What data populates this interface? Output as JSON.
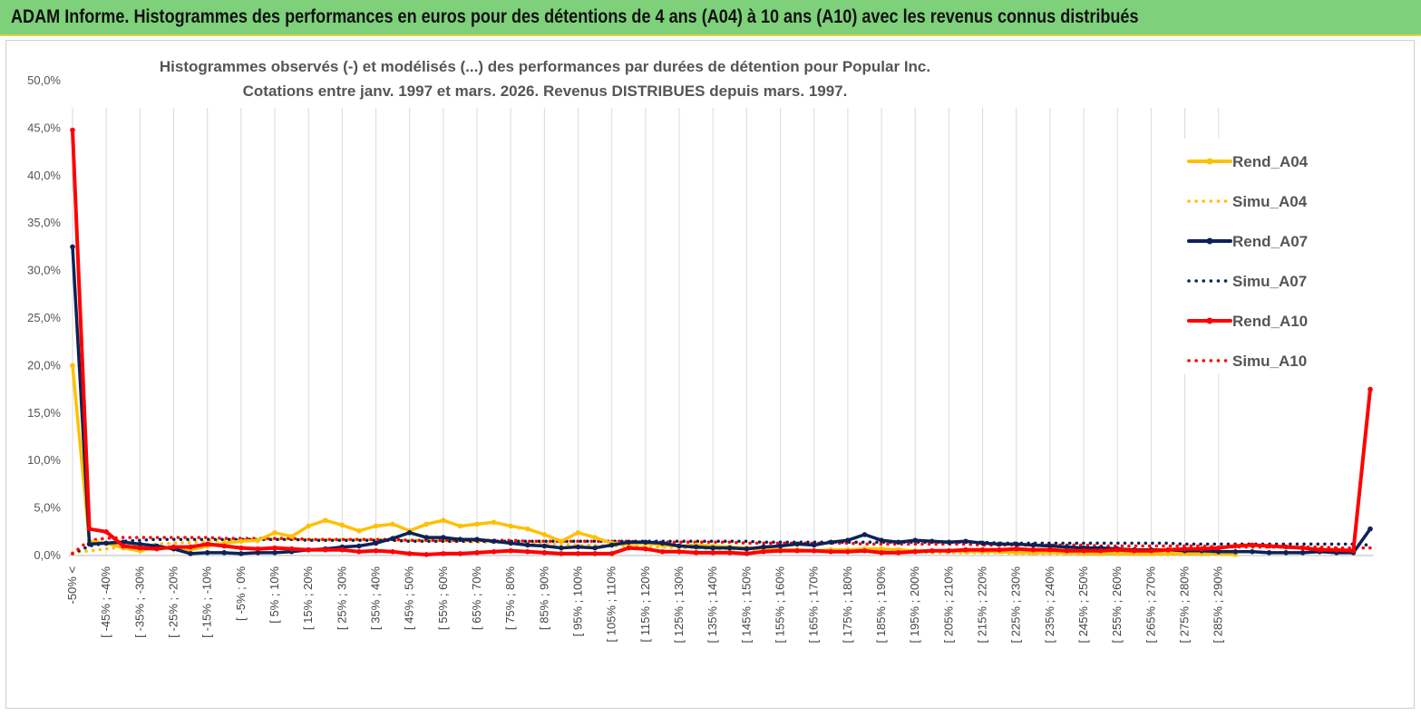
{
  "header": {
    "title": "ADAM Informe. Histogrammes des performances en euros pour des détentions de 4 ans (A04) à 10 ans (A10) avec les revenus connus distribués"
  },
  "chart_data": {
    "type": "line",
    "title_line1": "Histogrammes observés (-) et modélisés (...) des performances par durées de détention pour Popular Inc.",
    "title_line2": "Cotations entre janv. 1997 et mars. 2026. Revenus DISTRIBUES depuis mars. 1997.",
    "ylim": [
      0,
      50
    ],
    "yticks": [
      "0,0%",
      "5,0%",
      "10,0%",
      "15,0%",
      "20,0%",
      "25,0%",
      "30,0%",
      "35,0%",
      "40,0%",
      "45,0%",
      "50,0%"
    ],
    "grid": "vertical",
    "legend_position": "right",
    "x_labels": [
      "-50% <",
      "[ -45% ; -40%",
      "[ -35% ; -30%",
      "[ -25% ; -20%",
      "[ -15% ; -10%",
      "[ -5% ; 0%",
      "[ 5% ; 10%",
      "[ 15% ; 20%",
      "[ 25% ; 30%",
      "[ 35% ; 40%",
      "[ 45% ; 50%",
      "[ 55% ; 60%",
      "[ 65% ; 70%",
      "[ 75% ; 80%",
      "[ 85% ; 90%",
      "[ 95% ; 100%",
      "[ 105% ; 110%",
      "[ 115% ; 120%",
      "[ 125% ; 130%",
      "[ 135% ; 140%",
      "[ 145% ; 150%",
      "[ 155% ; 160%",
      "[ 165% ; 170%",
      "[ 175% ; 180%",
      "[ 185% ; 190%",
      "[ 195% ; 200%",
      "[ 205% ; 210%",
      "[ 215% ; 220%",
      "[ 225% ; 230%",
      "[ 235% ; 240%",
      "[ 245% ; 250%",
      "[ 255% ; 260%",
      "[ 265% ; 270%",
      "[ 275% ; 280%",
      "[ 285% ; 290%"
    ],
    "series": [
      {
        "name": "Rend_A04",
        "style": "solid",
        "color": "#ffc000",
        "values": [
          20.0,
          1.5,
          1.3,
          0.8,
          0.5,
          0.9,
          0.7,
          0.6,
          1.0,
          1.3,
          1.5,
          1.6,
          2.4,
          2.0,
          3.1,
          3.7,
          3.2,
          2.6,
          3.1,
          3.3,
          2.6,
          3.3,
          3.7,
          3.1,
          3.3,
          3.5,
          3.1,
          2.8,
          2.2,
          1.5,
          2.4,
          1.9,
          1.3,
          1.2,
          1.3,
          1.1,
          1.0,
          1.1,
          1.0,
          0.9,
          0.8,
          0.7,
          0.6,
          0.6,
          0.5,
          0.6,
          0.6,
          0.7,
          0.7,
          0.6,
          0.5,
          0.5,
          0.5,
          0.4,
          0.4,
          0.4,
          0.3,
          0.3,
          0.3,
          0.3,
          0.2,
          0.2,
          0.2,
          0.2,
          0.2,
          0.2,
          0.2,
          0.2,
          0.2,
          0.1
        ]
      },
      {
        "name": "Simu_A04",
        "style": "dotted",
        "color": "#ffc000",
        "values": [
          0.3,
          0.5,
          0.7,
          0.9,
          1.1,
          1.2,
          1.3,
          1.4,
          1.5,
          1.6,
          1.6,
          1.7,
          1.7,
          1.7,
          1.7,
          1.7,
          1.7,
          1.7,
          1.7,
          1.6,
          1.6,
          1.6,
          1.5,
          1.5,
          1.4,
          1.4,
          1.3,
          1.3,
          1.2,
          1.2,
          1.1,
          1.1,
          1.0,
          1.0,
          0.9,
          0.9,
          0.8,
          0.8,
          0.7,
          0.7,
          0.7,
          0.6,
          0.6,
          0.6,
          0.5,
          0.5,
          0.5,
          0.4,
          0.4,
          0.4,
          0.4,
          0.3,
          0.3,
          0.3,
          0.3,
          0.3,
          0.2,
          0.2,
          0.2,
          0.2,
          0.2,
          0.2,
          0.2,
          0.1,
          0.1,
          0.1,
          0.1,
          0.1,
          0.1,
          0.1
        ]
      },
      {
        "name": "Rend_A07",
        "style": "solid",
        "color": "#0d2258",
        "values": [
          32.5,
          1.2,
          1.3,
          1.4,
          1.2,
          1.0,
          0.7,
          0.2,
          0.3,
          0.3,
          0.2,
          0.3,
          0.3,
          0.4,
          0.6,
          0.7,
          0.9,
          1.0,
          1.3,
          1.8,
          2.4,
          1.9,
          1.9,
          1.7,
          1.7,
          1.5,
          1.3,
          1.1,
          1.0,
          0.8,
          0.9,
          0.8,
          1.1,
          1.4,
          1.4,
          1.3,
          1.0,
          0.9,
          0.8,
          0.8,
          0.7,
          0.9,
          1.0,
          1.2,
          1.1,
          1.4,
          1.6,
          2.2,
          1.6,
          1.4,
          1.6,
          1.5,
          1.4,
          1.5,
          1.3,
          1.2,
          1.2,
          1.1,
          1.0,
          0.9,
          0.8,
          0.8,
          0.7,
          0.6,
          0.6,
          0.6,
          0.5,
          0.5,
          0.4,
          0.4,
          0.4,
          0.3,
          0.3,
          0.3,
          0.4,
          0.3,
          0.3,
          2.8
        ]
      },
      {
        "name": "Simu_A07",
        "style": "dotted",
        "color": "#0d2258",
        "values": [
          0.2,
          1.0,
          1.3,
          1.5,
          1.6,
          1.7,
          1.7,
          1.7,
          1.7,
          1.7,
          1.7,
          1.7,
          1.7,
          1.7,
          1.6,
          1.6,
          1.6,
          1.6,
          1.6,
          1.6,
          1.5,
          1.5,
          1.5,
          1.5,
          1.5,
          1.5,
          1.5,
          1.5,
          1.5,
          1.5,
          1.5,
          1.5,
          1.5,
          1.5,
          1.5,
          1.5,
          1.5,
          1.5,
          1.5,
          1.5,
          1.5,
          1.4,
          1.4,
          1.4,
          1.4,
          1.4,
          1.4,
          1.4,
          1.4,
          1.4,
          1.4,
          1.4,
          1.4,
          1.4,
          1.4,
          1.3,
          1.3,
          1.3,
          1.3,
          1.3,
          1.3,
          1.3,
          1.3,
          1.3,
          1.3,
          1.3,
          1.2,
          1.2,
          1.2,
          1.2,
          1.2,
          1.2,
          1.2,
          1.2,
          1.2,
          1.2,
          1.2,
          1.1
        ]
      },
      {
        "name": "Rend_A10",
        "style": "solid",
        "color": "#ff0000",
        "values": [
          44.8,
          2.8,
          2.5,
          1.0,
          0.8,
          0.7,
          0.9,
          0.9,
          1.2,
          1.0,
          0.8,
          0.7,
          0.8,
          0.7,
          0.6,
          0.6,
          0.6,
          0.4,
          0.5,
          0.4,
          0.2,
          0.1,
          0.2,
          0.2,
          0.3,
          0.4,
          0.5,
          0.4,
          0.3,
          0.2,
          0.2,
          0.2,
          0.2,
          0.8,
          0.7,
          0.4,
          0.4,
          0.3,
          0.3,
          0.3,
          0.2,
          0.4,
          0.5,
          0.5,
          0.5,
          0.4,
          0.4,
          0.5,
          0.3,
          0.3,
          0.4,
          0.5,
          0.5,
          0.6,
          0.6,
          0.6,
          0.7,
          0.6,
          0.6,
          0.5,
          0.5,
          0.5,
          0.6,
          0.5,
          0.5,
          0.6,
          0.7,
          0.7,
          0.8,
          1.0,
          1.1,
          1.0,
          0.9,
          0.8,
          0.6,
          0.6,
          0.5,
          17.5
        ]
      },
      {
        "name": "Simu_A10",
        "style": "dotted",
        "color": "#ff0000",
        "values": [
          0.2,
          1.6,
          1.8,
          1.9,
          1.9,
          1.9,
          1.9,
          1.9,
          1.9,
          1.8,
          1.8,
          1.8,
          1.8,
          1.8,
          1.7,
          1.7,
          1.7,
          1.7,
          1.7,
          1.7,
          1.6,
          1.6,
          1.6,
          1.6,
          1.6,
          1.6,
          1.6,
          1.5,
          1.5,
          1.5,
          1.5,
          1.5,
          1.5,
          1.5,
          1.4,
          1.4,
          1.4,
          1.4,
          1.4,
          1.4,
          1.3,
          1.3,
          1.3,
          1.3,
          1.3,
          1.3,
          1.3,
          1.2,
          1.2,
          1.2,
          1.2,
          1.2,
          1.2,
          1.2,
          1.1,
          1.1,
          1.1,
          1.1,
          1.1,
          1.1,
          1.1,
          1.0,
          1.0,
          1.0,
          1.0,
          1.0,
          1.0,
          1.0,
          0.9,
          0.9,
          0.9,
          0.9,
          0.9,
          0.9,
          0.9,
          0.8,
          0.8,
          0.8
        ]
      }
    ]
  }
}
